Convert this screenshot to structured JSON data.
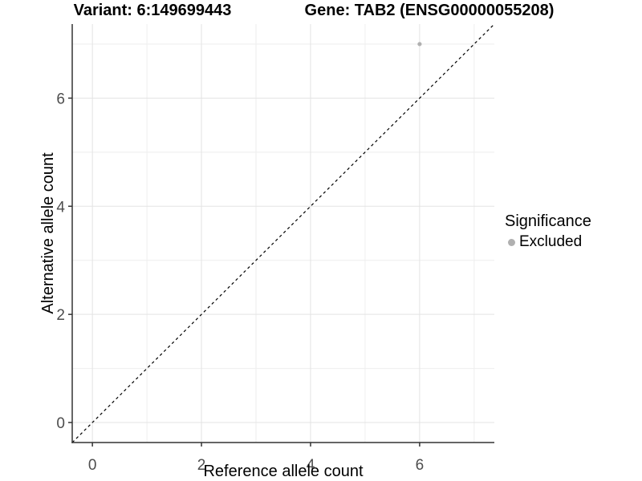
{
  "chart_data": {
    "type": "scatter",
    "title_left": "Variant: 6:149699443",
    "title_right": "Gene: TAB2 (ENSG00000055208)",
    "xlabel": "Reference allele count",
    "ylabel": "Alternative allele count",
    "xlim": [
      -0.37,
      7.37
    ],
    "ylim": [
      -0.37,
      7.37
    ],
    "x_ticks": [
      0,
      2,
      4,
      6
    ],
    "y_ticks": [
      0,
      2,
      4,
      6
    ],
    "x_minor_gridlines": [
      1,
      3,
      5,
      7
    ],
    "y_minor_gridlines": [
      1,
      3,
      5,
      7
    ],
    "grid": "on",
    "legend_position": "right",
    "series": [
      {
        "name": "Excluded",
        "color": "#b0b0b0",
        "points": [
          {
            "x": 6,
            "y": 7
          }
        ]
      }
    ],
    "reference_line": {
      "kind": "identity",
      "equation": "y = x",
      "style": "dashed",
      "color": "#000000"
    },
    "legend": {
      "title": "Significance",
      "entries": [
        {
          "label": "Excluded",
          "color": "#b0b0b0"
        }
      ]
    },
    "colors": {
      "background": "#ffffff",
      "grid_major": "#e3e3e3",
      "grid_minor": "#eeeeee",
      "axis_line": "#333333",
      "tick_label": "#4d4d4d",
      "title_text": "#000000"
    }
  }
}
